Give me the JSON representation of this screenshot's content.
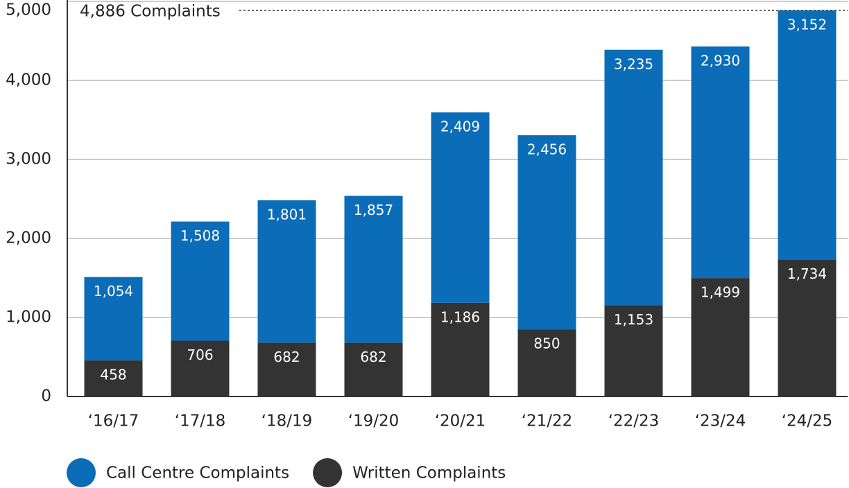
{
  "chart_data": {
    "type": "stacked_bar",
    "categories": [
      "‘16/17",
      "‘17/18",
      "‘18/19",
      "‘19/20",
      "‘20/21",
      "‘21/22",
      "‘22/23",
      "‘23/24",
      "‘24/25"
    ],
    "series": [
      {
        "name": "Written Complaints",
        "color": "#333333",
        "values": [
          458,
          706,
          682,
          682,
          1186,
          850,
          1153,
          1499,
          1734
        ],
        "value_labels": [
          "458",
          "706",
          "682",
          "682",
          "1,186",
          "850",
          "1,153",
          "1,499",
          "1,734"
        ]
      },
      {
        "name": "Call Centre Complaints",
        "color": "#0b6cb8",
        "values": [
          1054,
          1508,
          1801,
          1857,
          2409,
          2456,
          3235,
          2930,
          3152
        ],
        "value_labels": [
          "1,054",
          "1,508",
          "1,801",
          "1,857",
          "2,409",
          "2,456",
          "3,235",
          "2,930",
          "3,152"
        ]
      }
    ],
    "ylim": [
      0,
      5000
    ],
    "yticks": [
      0,
      {
        "value": 1000,
        "label": "1,000"
      },
      {
        "value": 2000,
        "label": "2,000"
      },
      {
        "value": 3000,
        "label": "3,000"
      },
      {
        "value": 4000,
        "label": "4,000"
      },
      {
        "value": 5000,
        "label": "5,000"
      }
    ],
    "grid": true,
    "annotation": {
      "text": "4,886 Complaints",
      "value": 4886
    },
    "legend_order": [
      1,
      0
    ]
  }
}
